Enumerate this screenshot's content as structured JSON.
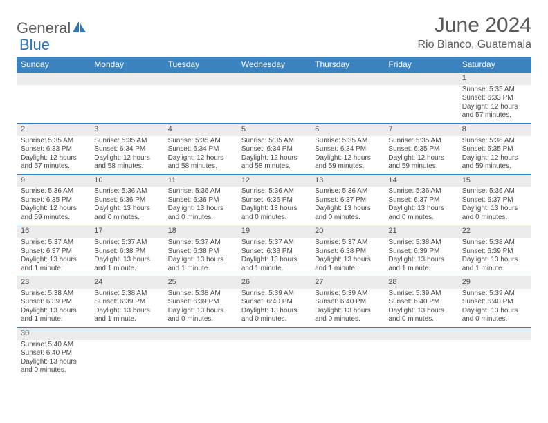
{
  "logo": {
    "general": "General",
    "blue": "Blue"
  },
  "title": "June 2024",
  "location": "Rio Blanco, Guatemala",
  "colors": {
    "header_bg": "#3b83c0",
    "header_text": "#ffffff",
    "daynum_bg": "#ececec",
    "text": "#4a4a4a",
    "border": "#3b83c0"
  },
  "weekdays": [
    "Sunday",
    "Monday",
    "Tuesday",
    "Wednesday",
    "Thursday",
    "Friday",
    "Saturday"
  ],
  "weeks": [
    [
      null,
      null,
      null,
      null,
      null,
      null,
      {
        "n": "1",
        "sunrise": "Sunrise: 5:35 AM",
        "sunset": "Sunset: 6:33 PM",
        "daylight": "Daylight: 12 hours and 57 minutes."
      }
    ],
    [
      {
        "n": "2",
        "sunrise": "Sunrise: 5:35 AM",
        "sunset": "Sunset: 6:33 PM",
        "daylight": "Daylight: 12 hours and 57 minutes."
      },
      {
        "n": "3",
        "sunrise": "Sunrise: 5:35 AM",
        "sunset": "Sunset: 6:34 PM",
        "daylight": "Daylight: 12 hours and 58 minutes."
      },
      {
        "n": "4",
        "sunrise": "Sunrise: 5:35 AM",
        "sunset": "Sunset: 6:34 PM",
        "daylight": "Daylight: 12 hours and 58 minutes."
      },
      {
        "n": "5",
        "sunrise": "Sunrise: 5:35 AM",
        "sunset": "Sunset: 6:34 PM",
        "daylight": "Daylight: 12 hours and 58 minutes."
      },
      {
        "n": "6",
        "sunrise": "Sunrise: 5:35 AM",
        "sunset": "Sunset: 6:34 PM",
        "daylight": "Daylight: 12 hours and 59 minutes."
      },
      {
        "n": "7",
        "sunrise": "Sunrise: 5:35 AM",
        "sunset": "Sunset: 6:35 PM",
        "daylight": "Daylight: 12 hours and 59 minutes."
      },
      {
        "n": "8",
        "sunrise": "Sunrise: 5:36 AM",
        "sunset": "Sunset: 6:35 PM",
        "daylight": "Daylight: 12 hours and 59 minutes."
      }
    ],
    [
      {
        "n": "9",
        "sunrise": "Sunrise: 5:36 AM",
        "sunset": "Sunset: 6:35 PM",
        "daylight": "Daylight: 12 hours and 59 minutes."
      },
      {
        "n": "10",
        "sunrise": "Sunrise: 5:36 AM",
        "sunset": "Sunset: 6:36 PM",
        "daylight": "Daylight: 13 hours and 0 minutes."
      },
      {
        "n": "11",
        "sunrise": "Sunrise: 5:36 AM",
        "sunset": "Sunset: 6:36 PM",
        "daylight": "Daylight: 13 hours and 0 minutes."
      },
      {
        "n": "12",
        "sunrise": "Sunrise: 5:36 AM",
        "sunset": "Sunset: 6:36 PM",
        "daylight": "Daylight: 13 hours and 0 minutes."
      },
      {
        "n": "13",
        "sunrise": "Sunrise: 5:36 AM",
        "sunset": "Sunset: 6:37 PM",
        "daylight": "Daylight: 13 hours and 0 minutes."
      },
      {
        "n": "14",
        "sunrise": "Sunrise: 5:36 AM",
        "sunset": "Sunset: 6:37 PM",
        "daylight": "Daylight: 13 hours and 0 minutes."
      },
      {
        "n": "15",
        "sunrise": "Sunrise: 5:36 AM",
        "sunset": "Sunset: 6:37 PM",
        "daylight": "Daylight: 13 hours and 0 minutes."
      }
    ],
    [
      {
        "n": "16",
        "sunrise": "Sunrise: 5:37 AM",
        "sunset": "Sunset: 6:37 PM",
        "daylight": "Daylight: 13 hours and 1 minute."
      },
      {
        "n": "17",
        "sunrise": "Sunrise: 5:37 AM",
        "sunset": "Sunset: 6:38 PM",
        "daylight": "Daylight: 13 hours and 1 minute."
      },
      {
        "n": "18",
        "sunrise": "Sunrise: 5:37 AM",
        "sunset": "Sunset: 6:38 PM",
        "daylight": "Daylight: 13 hours and 1 minute."
      },
      {
        "n": "19",
        "sunrise": "Sunrise: 5:37 AM",
        "sunset": "Sunset: 6:38 PM",
        "daylight": "Daylight: 13 hours and 1 minute."
      },
      {
        "n": "20",
        "sunrise": "Sunrise: 5:37 AM",
        "sunset": "Sunset: 6:38 PM",
        "daylight": "Daylight: 13 hours and 1 minute."
      },
      {
        "n": "21",
        "sunrise": "Sunrise: 5:38 AM",
        "sunset": "Sunset: 6:39 PM",
        "daylight": "Daylight: 13 hours and 1 minute."
      },
      {
        "n": "22",
        "sunrise": "Sunrise: 5:38 AM",
        "sunset": "Sunset: 6:39 PM",
        "daylight": "Daylight: 13 hours and 1 minute."
      }
    ],
    [
      {
        "n": "23",
        "sunrise": "Sunrise: 5:38 AM",
        "sunset": "Sunset: 6:39 PM",
        "daylight": "Daylight: 13 hours and 1 minute."
      },
      {
        "n": "24",
        "sunrise": "Sunrise: 5:38 AM",
        "sunset": "Sunset: 6:39 PM",
        "daylight": "Daylight: 13 hours and 1 minute."
      },
      {
        "n": "25",
        "sunrise": "Sunrise: 5:38 AM",
        "sunset": "Sunset: 6:39 PM",
        "daylight": "Daylight: 13 hours and 0 minutes."
      },
      {
        "n": "26",
        "sunrise": "Sunrise: 5:39 AM",
        "sunset": "Sunset: 6:40 PM",
        "daylight": "Daylight: 13 hours and 0 minutes."
      },
      {
        "n": "27",
        "sunrise": "Sunrise: 5:39 AM",
        "sunset": "Sunset: 6:40 PM",
        "daylight": "Daylight: 13 hours and 0 minutes."
      },
      {
        "n": "28",
        "sunrise": "Sunrise: 5:39 AM",
        "sunset": "Sunset: 6:40 PM",
        "daylight": "Daylight: 13 hours and 0 minutes."
      },
      {
        "n": "29",
        "sunrise": "Sunrise: 5:39 AM",
        "sunset": "Sunset: 6:40 PM",
        "daylight": "Daylight: 13 hours and 0 minutes."
      }
    ],
    [
      {
        "n": "30",
        "sunrise": "Sunrise: 5:40 AM",
        "sunset": "Sunset: 6:40 PM",
        "daylight": "Daylight: 13 hours and 0 minutes."
      },
      null,
      null,
      null,
      null,
      null,
      null
    ]
  ]
}
